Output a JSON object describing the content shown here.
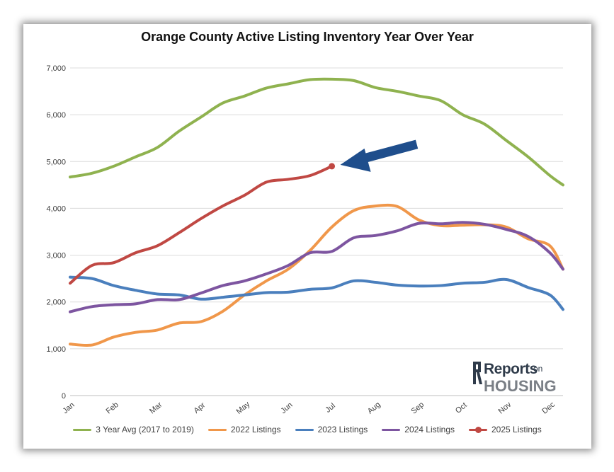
{
  "chart_data": {
    "type": "line",
    "title": "Orange County Active Listing Inventory Year Over Year",
    "xlabel": "",
    "ylabel": "",
    "ylim": [
      0,
      7000
    ],
    "yticks": [
      "0",
      "1,000",
      "2,000",
      "3,000",
      "4,000",
      "5,000",
      "6,000",
      "7,000"
    ],
    "categories": [
      "Jan",
      "Feb",
      "Mar",
      "Apr",
      "May",
      "Jun",
      "Jul",
      "Aug",
      "Sep",
      "Oct",
      "Nov",
      "Dec"
    ],
    "grid": true,
    "legend_position": "bottom",
    "series": [
      {
        "name": "3 Year Avg (2017 to 2019)",
        "color": "#8fb24f",
        "points": [
          [
            0,
            4670
          ],
          [
            0.5,
            4750
          ],
          [
            1,
            4900
          ],
          [
            1.5,
            5100
          ],
          [
            2,
            5300
          ],
          [
            2.5,
            5650
          ],
          [
            3,
            5950
          ],
          [
            3.5,
            6250
          ],
          [
            4,
            6400
          ],
          [
            4.5,
            6570
          ],
          [
            5,
            6660
          ],
          [
            5.5,
            6750
          ],
          [
            6,
            6760
          ],
          [
            6.5,
            6730
          ],
          [
            7,
            6580
          ],
          [
            7.5,
            6500
          ],
          [
            8,
            6400
          ],
          [
            8.5,
            6300
          ],
          [
            9,
            6000
          ],
          [
            9.5,
            5800
          ],
          [
            10,
            5450
          ],
          [
            10.5,
            5100
          ],
          [
            11,
            4700
          ],
          [
            11.3,
            4500
          ]
        ]
      },
      {
        "name": "2022 Listings",
        "color": "#f0974a",
        "points": [
          [
            0,
            1100
          ],
          [
            0.5,
            1080
          ],
          [
            1,
            1250
          ],
          [
            1.5,
            1350
          ],
          [
            2,
            1400
          ],
          [
            2.5,
            1550
          ],
          [
            3,
            1580
          ],
          [
            3.5,
            1800
          ],
          [
            4,
            2150
          ],
          [
            4.5,
            2450
          ],
          [
            5,
            2700
          ],
          [
            5.5,
            3100
          ],
          [
            6,
            3600
          ],
          [
            6.5,
            3950
          ],
          [
            7,
            4050
          ],
          [
            7.5,
            4040
          ],
          [
            8,
            3750
          ],
          [
            8.5,
            3630
          ],
          [
            9,
            3640
          ],
          [
            9.5,
            3650
          ],
          [
            10,
            3600
          ],
          [
            10.5,
            3350
          ],
          [
            11,
            3200
          ],
          [
            11.3,
            2700
          ]
        ]
      },
      {
        "name": "2023 Listings",
        "color": "#4a7fbd",
        "points": [
          [
            0,
            2530
          ],
          [
            0.5,
            2500
          ],
          [
            1,
            2350
          ],
          [
            1.5,
            2250
          ],
          [
            2,
            2170
          ],
          [
            2.5,
            2150
          ],
          [
            3,
            2060
          ],
          [
            3.5,
            2100
          ],
          [
            4,
            2150
          ],
          [
            4.5,
            2200
          ],
          [
            5,
            2210
          ],
          [
            5.5,
            2270
          ],
          [
            6,
            2300
          ],
          [
            6.5,
            2450
          ],
          [
            7,
            2420
          ],
          [
            7.5,
            2360
          ],
          [
            8,
            2340
          ],
          [
            8.5,
            2350
          ],
          [
            9,
            2400
          ],
          [
            9.5,
            2420
          ],
          [
            10,
            2480
          ],
          [
            10.5,
            2310
          ],
          [
            11,
            2150
          ],
          [
            11.3,
            1840
          ]
        ]
      },
      {
        "name": "2024 Listings",
        "color": "#7d55a0",
        "points": [
          [
            0,
            1790
          ],
          [
            0.5,
            1900
          ],
          [
            1,
            1940
          ],
          [
            1.5,
            1960
          ],
          [
            2,
            2050
          ],
          [
            2.5,
            2050
          ],
          [
            3,
            2190
          ],
          [
            3.5,
            2350
          ],
          [
            4,
            2450
          ],
          [
            4.5,
            2600
          ],
          [
            5,
            2780
          ],
          [
            5.5,
            3050
          ],
          [
            6,
            3080
          ],
          [
            6.5,
            3370
          ],
          [
            7,
            3420
          ],
          [
            7.5,
            3520
          ],
          [
            8,
            3680
          ],
          [
            8.5,
            3670
          ],
          [
            9,
            3700
          ],
          [
            9.5,
            3660
          ],
          [
            10,
            3550
          ],
          [
            10.5,
            3400
          ],
          [
            11,
            3050
          ],
          [
            11.3,
            2700
          ]
        ]
      },
      {
        "name": "2025 Listings",
        "color": "#c04843",
        "marker": "end-dot",
        "points": [
          [
            0,
            2400
          ],
          [
            0.5,
            2780
          ],
          [
            1,
            2840
          ],
          [
            1.5,
            3050
          ],
          [
            2,
            3200
          ],
          [
            2.5,
            3480
          ],
          [
            3,
            3780
          ],
          [
            3.5,
            4050
          ],
          [
            4,
            4280
          ],
          [
            4.5,
            4560
          ],
          [
            5,
            4620
          ],
          [
            5.5,
            4700
          ],
          [
            6,
            4900
          ]
        ]
      }
    ],
    "annotations": [
      {
        "type": "arrow",
        "color": "#1f4e8c",
        "points_to": "2025 Listings end"
      }
    ]
  },
  "logo": {
    "reports": "Reports",
    "on": "on",
    "housing": "HOUSING"
  }
}
